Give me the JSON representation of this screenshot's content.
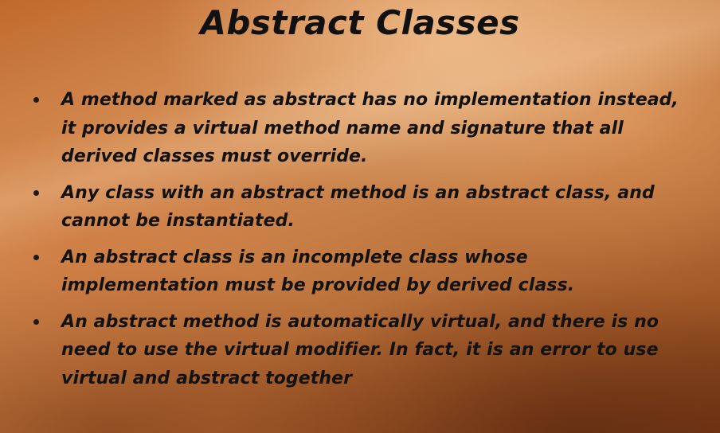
{
  "slide": {
    "title": "Abstract Classes",
    "bullets": [
      "A method marked as abstract has no implementation instead, it provides a virtual method name and signature that all derived classes must override.",
      "Any class with an abstract method is an abstract class, and cannot be instantiated.",
      "An abstract class is an incomplete class whose implementation must be provided by derived class.",
      "An abstract method is automatically virtual, and there is no need to use the virtual modifier. In fact, it is an error to use virtual and abstract together"
    ]
  },
  "colors": {
    "text": "#121212",
    "background_light": "#d6925a",
    "background_dark": "#7a3c16"
  }
}
